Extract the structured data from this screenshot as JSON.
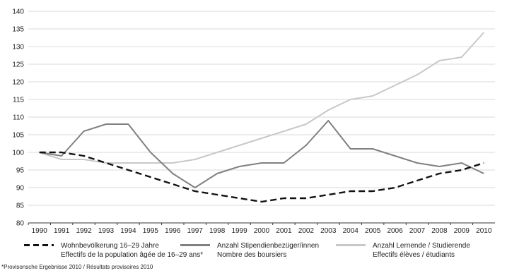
{
  "chart_data": {
    "type": "line",
    "x": [
      "1990",
      "1991",
      "1992",
      "1993",
      "1994",
      "1995",
      "1996",
      "1997",
      "1998",
      "1999",
      "2000",
      "2001",
      "2002",
      "2003",
      "2004",
      "2005",
      "2006",
      "2007",
      "2008",
      "2009",
      "2010"
    ],
    "ylim": [
      80,
      140
    ],
    "yticks": [
      80,
      85,
      90,
      95,
      100,
      105,
      110,
      115,
      120,
      125,
      130,
      135,
      140
    ],
    "grid": true,
    "legend_position": "bottom",
    "series": [
      {
        "name_line1": "Wohnbevölkerung 16–29 Jahre",
        "name_line2": "Effectifs de la population âgée de 16–29 ans*",
        "color": "#111111",
        "style": "dashed",
        "values": [
          100,
          100,
          99,
          97,
          95,
          93,
          91,
          89,
          88,
          87,
          86,
          87,
          87,
          88,
          89,
          89,
          90,
          92,
          94,
          95,
          97
        ]
      },
      {
        "name_line1": "Anzahl Stipendienbezüger/innen",
        "name_line2": "Nombre des boursiers",
        "color": "#808080",
        "style": "solid",
        "values": [
          100,
          99,
          106,
          108,
          108,
          100,
          94,
          90,
          94,
          96,
          97,
          97,
          102,
          109,
          101,
          101,
          99,
          97,
          96,
          97,
          94
        ]
      },
      {
        "name_line1": "Anzahl Lernende / Studierende",
        "name_line2": "Effectifs élèves / étudiants",
        "color": "#c8c8c8",
        "style": "solid",
        "values": [
          100,
          98,
          98,
          97,
          97,
          97,
          97,
          98,
          100,
          102,
          104,
          106,
          108,
          112,
          115,
          116,
          119,
          122,
          126,
          127,
          134
        ]
      }
    ],
    "footnote": "*Provisonsche Ergebnisse 2010 / Résultats provisoires 2010"
  }
}
